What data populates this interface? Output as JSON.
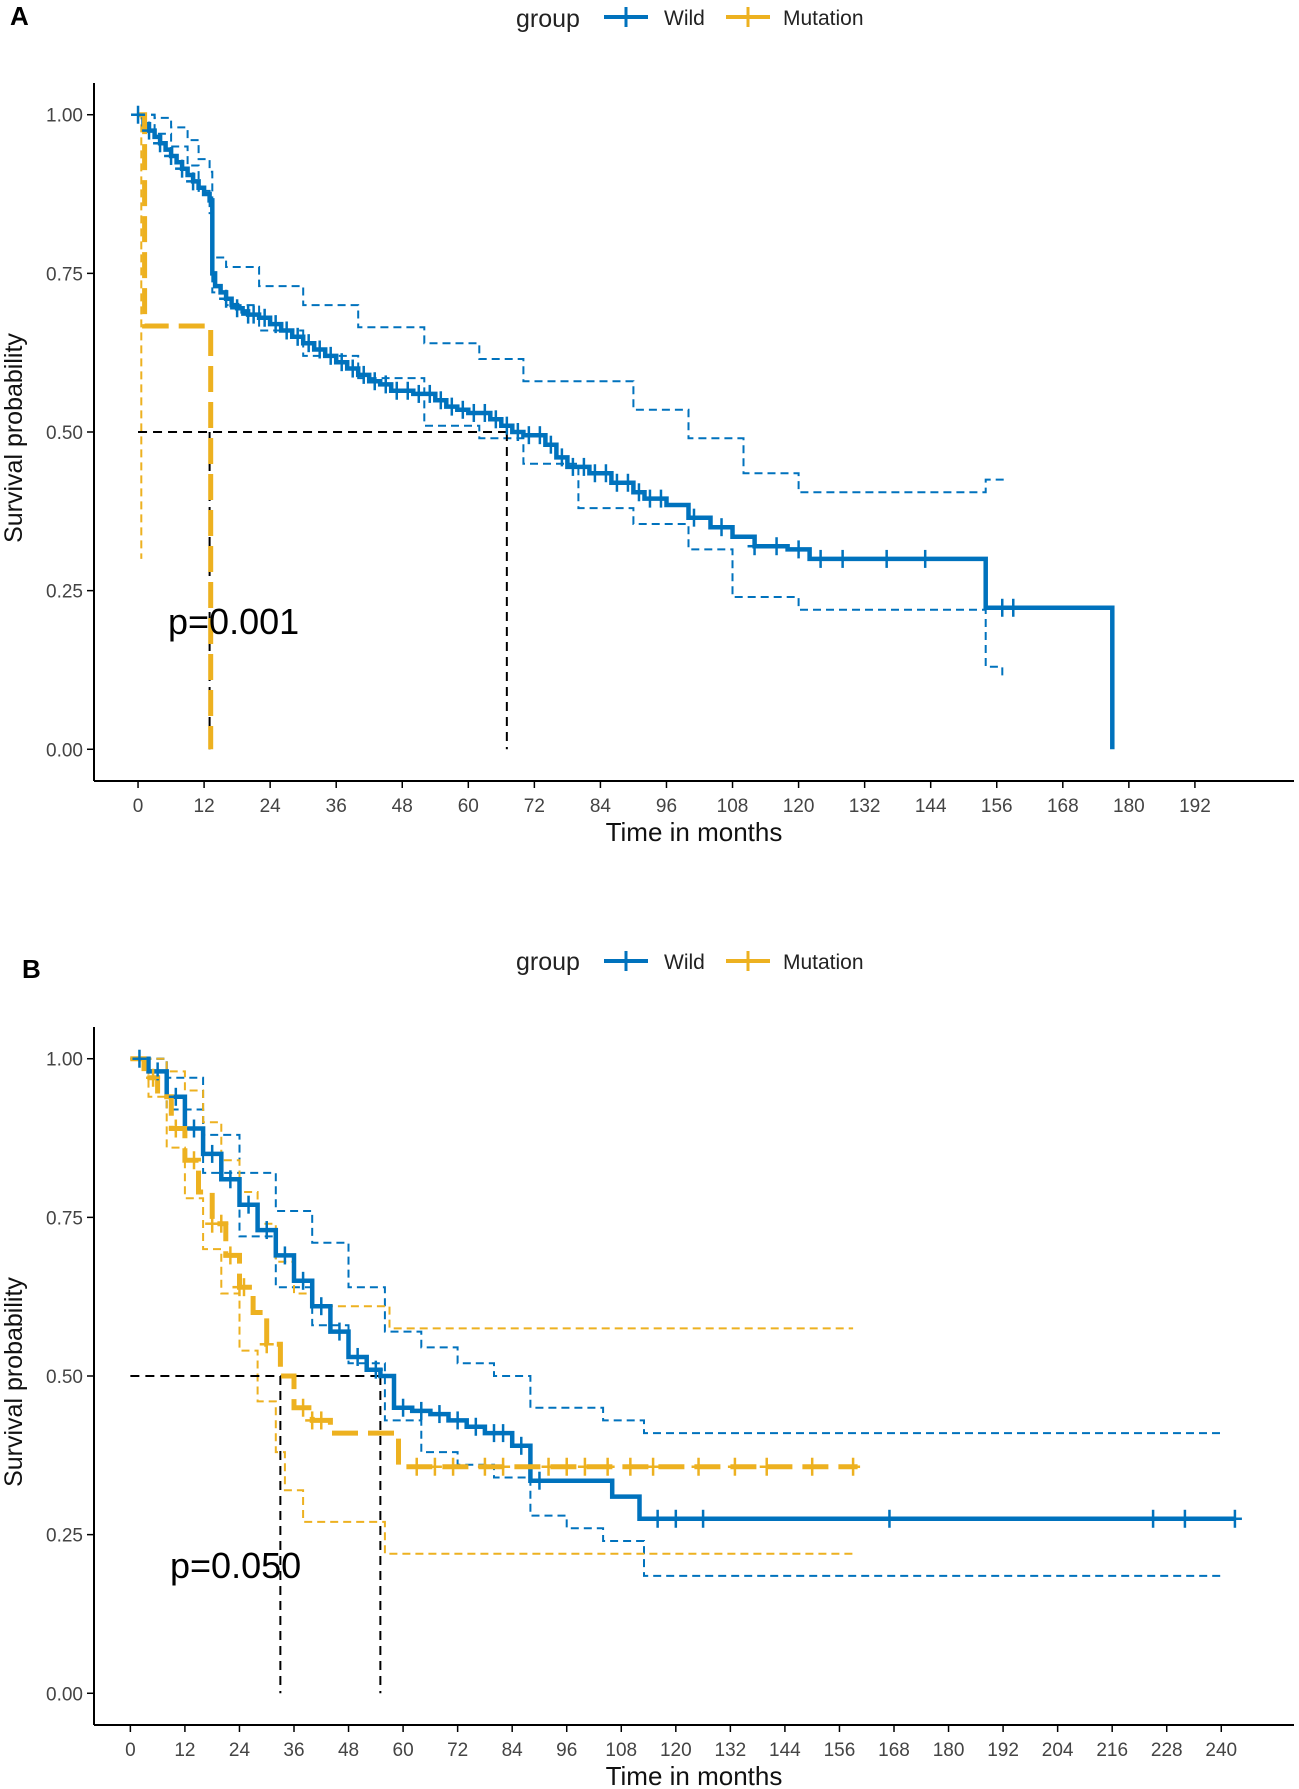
{
  "figure": {
    "legend_title": "group",
    "wild_label": "Wild",
    "mutation_label": "Mutation",
    "ylabel": "Survival probability",
    "xlabel": "Time in months",
    "wild_color": "#0072BD",
    "mutation_color": "#EDB120",
    "median_line_color": "#000000"
  },
  "chart_data": [
    {
      "panel": "A",
      "type": "line",
      "subtype": "kaplan-meier",
      "p_label": "p=0.001",
      "xlabel": "Time in months",
      "ylabel": "Survival probability",
      "xlim": [
        -8,
        210
      ],
      "ylim": [
        -0.05,
        1.05
      ],
      "xticks": [
        0,
        12,
        24,
        36,
        48,
        60,
        72,
        84,
        96,
        108,
        120,
        132,
        144,
        156,
        168,
        180,
        192
      ],
      "yticks": [
        0,
        0.25,
        0.5,
        0.75,
        1
      ],
      "ytick_labels": [
        "0.00",
        "0.25",
        "0.50",
        "0.75",
        "1.00"
      ],
      "legend_position": "top",
      "median_lines": {
        "y": 0.5,
        "x": [
          13,
          67
        ]
      },
      "series": [
        {
          "name": "Wild",
          "color": "#0072BD",
          "x": [
            0,
            1,
            2,
            3,
            4,
            5,
            6,
            7,
            8,
            9,
            10,
            11,
            12,
            13,
            13.5,
            14,
            15,
            16,
            17,
            18,
            19,
            20,
            22,
            24,
            26,
            28,
            30,
            32,
            34,
            36,
            38,
            40,
            42,
            44,
            46,
            50,
            54,
            56,
            58,
            60,
            64,
            66,
            68,
            70,
            74,
            76,
            78,
            82,
            86,
            90,
            92,
            96,
            100,
            104,
            108,
            112,
            118,
            122,
            134,
            146,
            154,
            157,
            170,
            177
          ],
          "y": [
            1,
            0.985,
            0.975,
            0.965,
            0.955,
            0.945,
            0.935,
            0.925,
            0.915,
            0.905,
            0.895,
            0.885,
            0.875,
            0.865,
            0.75,
            0.73,
            0.72,
            0.71,
            0.7,
            0.695,
            0.69,
            0.685,
            0.68,
            0.67,
            0.66,
            0.65,
            0.64,
            0.63,
            0.62,
            0.61,
            0.6,
            0.59,
            0.58,
            0.575,
            0.565,
            0.56,
            0.55,
            0.54,
            0.535,
            0.53,
            0.52,
            0.51,
            0.5,
            0.495,
            0.48,
            0.46,
            0.445,
            0.435,
            0.42,
            0.405,
            0.395,
            0.385,
            0.365,
            0.35,
            0.335,
            0.32,
            0.315,
            0.3,
            0.3,
            0.3,
            0.223,
            0.223,
            0.223,
            0
          ],
          "ci_upper": [
            [
              0,
              1
            ],
            [
              3,
              0.995
            ],
            [
              6,
              0.98
            ],
            [
              9,
              0.96
            ],
            [
              11,
              0.93
            ],
            [
              13,
              0.91
            ],
            [
              13.5,
              0.775
            ],
            [
              16,
              0.76
            ],
            [
              22,
              0.73
            ],
            [
              30,
              0.7
            ],
            [
              40,
              0.665
            ],
            [
              52,
              0.64
            ],
            [
              62,
              0.615
            ],
            [
              70,
              0.58
            ],
            [
              90,
              0.535
            ],
            [
              100,
              0.49
            ],
            [
              110,
              0.435
            ],
            [
              120,
              0.405
            ],
            [
              132,
              0.405
            ],
            [
              150,
              0.405
            ],
            [
              154,
              0.425
            ],
            [
              158,
              0.425
            ]
          ],
          "ci_lower": [
            [
              0,
              1
            ],
            [
              3,
              0.97
            ],
            [
              6,
              0.95
            ],
            [
              9,
              0.92
            ],
            [
              11,
              0.88
            ],
            [
              13,
              0.845
            ],
            [
              13.5,
              0.72
            ],
            [
              16,
              0.7
            ],
            [
              22,
              0.66
            ],
            [
              30,
              0.62
            ],
            [
              40,
              0.585
            ],
            [
              52,
              0.51
            ],
            [
              62,
              0.49
            ],
            [
              70,
              0.45
            ],
            [
              80,
              0.38
            ],
            [
              90,
              0.355
            ],
            [
              100,
              0.315
            ],
            [
              108,
              0.24
            ],
            [
              120,
              0.22
            ],
            [
              132,
              0.22
            ],
            [
              150,
              0.22
            ],
            [
              154,
              0.13
            ],
            [
              157,
              0.115
            ]
          ],
          "censor_x": [
            0,
            2,
            4,
            6,
            8,
            10,
            16,
            18,
            20,
            21,
            23,
            25,
            27,
            29,
            31,
            33,
            35,
            37,
            39,
            41,
            43,
            45,
            47,
            49,
            51,
            53,
            55,
            57,
            59,
            61,
            63,
            65,
            67,
            69,
            71,
            73,
            75,
            77,
            79,
            81,
            83,
            85,
            87,
            89,
            91,
            93,
            95,
            101,
            106,
            112,
            116,
            120,
            124,
            128,
            136,
            143,
            157,
            159
          ]
        },
        {
          "name": "Mutation",
          "color": "#EDB120",
          "x": [
            0,
            1,
            1.2,
            13,
            13.2
          ],
          "y": [
            1,
            1,
            0.667,
            0.667,
            0
          ],
          "ci_upper": [
            [
              0,
              1
            ]
          ],
          "ci_lower": [
            [
              0,
              1
            ],
            [
              0.5,
              1
            ],
            [
              0.6,
              0.3
            ]
          ],
          "censor_x": []
        }
      ]
    },
    {
      "panel": "B",
      "type": "line",
      "subtype": "kaplan-meier",
      "p_label": "p=0.050",
      "xlabel": "Time in months",
      "ylabel": "Survival probability",
      "xlim": [
        -8,
        256
      ],
      "ylim": [
        -0.05,
        1.05
      ],
      "xticks": [
        0,
        12,
        24,
        36,
        48,
        60,
        72,
        84,
        96,
        108,
        120,
        132,
        144,
        156,
        168,
        180,
        192,
        204,
        216,
        228,
        240
      ],
      "yticks": [
        0,
        0.25,
        0.5,
        0.75,
        1
      ],
      "ytick_labels": [
        "0.00",
        "0.25",
        "0.50",
        "0.75",
        "1.00"
      ],
      "legend_position": "top",
      "median_lines": {
        "y": 0.5,
        "x": [
          33,
          55
        ]
      },
      "series": [
        {
          "name": "Wild",
          "color": "#0072BD",
          "x": [
            0,
            4,
            8,
            12,
            16,
            20,
            24,
            28,
            32,
            36,
            40,
            44,
            48,
            52,
            55,
            58,
            62,
            66,
            70,
            74,
            78,
            84,
            88,
            96,
            102,
            106,
            112,
            120,
            160,
            200,
            243
          ],
          "y": [
            1,
            0.98,
            0.94,
            0.89,
            0.85,
            0.81,
            0.77,
            0.73,
            0.69,
            0.65,
            0.61,
            0.57,
            0.53,
            0.51,
            0.5,
            0.45,
            0.445,
            0.44,
            0.43,
            0.42,
            0.41,
            0.39,
            0.335,
            0.335,
            0.335,
            0.31,
            0.275,
            0.275,
            0.275,
            0.275,
            0.275
          ],
          "ci_upper": [
            [
              0,
              1
            ],
            [
              8,
              0.97
            ],
            [
              16,
              0.88
            ],
            [
              24,
              0.82
            ],
            [
              32,
              0.76
            ],
            [
              40,
              0.71
            ],
            [
              48,
              0.64
            ],
            [
              56,
              0.57
            ],
            [
              64,
              0.545
            ],
            [
              72,
              0.52
            ],
            [
              80,
              0.5
            ],
            [
              88,
              0.45
            ],
            [
              104,
              0.43
            ],
            [
              113,
              0.41
            ],
            [
              140,
              0.41
            ],
            [
              240,
              0.41
            ]
          ],
          "ci_lower": [
            [
              0,
              1
            ],
            [
              8,
              0.92
            ],
            [
              16,
              0.82
            ],
            [
              24,
              0.72
            ],
            [
              32,
              0.64
            ],
            [
              40,
              0.58
            ],
            [
              48,
              0.52
            ],
            [
              56,
              0.43
            ],
            [
              64,
              0.38
            ],
            [
              72,
              0.36
            ],
            [
              80,
              0.34
            ],
            [
              88,
              0.28
            ],
            [
              96,
              0.26
            ],
            [
              104,
              0.24
            ],
            [
              113,
              0.185
            ],
            [
              140,
              0.185
            ],
            [
              240,
              0.185
            ]
          ],
          "censor_x": [
            2,
            6,
            10,
            14,
            18,
            22,
            26,
            30,
            34,
            38,
            42,
            46,
            50,
            54,
            60,
            64,
            68,
            72,
            76,
            80,
            82,
            86,
            90,
            116,
            120,
            126,
            167,
            225,
            232,
            243
          ]
        },
        {
          "name": "Mutation",
          "color": "#EDB120",
          "x": [
            0,
            3,
            6,
            9,
            12,
            15,
            18,
            21,
            24,
            27,
            30,
            33,
            36,
            40,
            44,
            48,
            52,
            55,
            59,
            70,
            100,
            130,
            160
          ],
          "y": [
            1,
            0.97,
            0.94,
            0.89,
            0.84,
            0.79,
            0.74,
            0.69,
            0.64,
            0.6,
            0.55,
            0.5,
            0.45,
            0.43,
            0.41,
            0.41,
            0.41,
            0.41,
            0.357,
            0.357,
            0.357,
            0.357,
            0.357
          ],
          "ci_upper": [
            [
              0,
              1
            ],
            [
              4,
              1
            ],
            [
              8,
              0.98
            ],
            [
              12,
              0.95
            ],
            [
              16,
              0.9
            ],
            [
              20,
              0.84
            ],
            [
              24,
              0.79
            ],
            [
              28,
              0.74
            ],
            [
              32,
              0.68
            ],
            [
              36,
              0.63
            ],
            [
              40,
              0.61
            ],
            [
              55,
              0.61
            ],
            [
              57,
              0.575
            ],
            [
              100,
              0.575
            ],
            [
              159,
              0.575
            ]
          ],
          "ci_lower": [
            [
              0,
              1
            ],
            [
              4,
              0.94
            ],
            [
              8,
              0.86
            ],
            [
              12,
              0.78
            ],
            [
              16,
              0.7
            ],
            [
              20,
              0.63
            ],
            [
              24,
              0.54
            ],
            [
              28,
              0.46
            ],
            [
              32,
              0.38
            ],
            [
              34,
              0.32
            ],
            [
              38,
              0.27
            ],
            [
              54,
              0.27
            ],
            [
              56,
              0.22
            ],
            [
              100,
              0.22
            ],
            [
              159,
              0.22
            ]
          ],
          "censor_x": [
            5,
            10,
            14,
            18,
            20,
            22,
            24,
            25,
            30,
            38,
            40,
            42,
            63,
            67,
            71,
            78,
            82,
            92,
            96,
            100,
            105,
            110,
            115,
            125,
            133,
            140,
            150,
            159
          ]
        }
      ]
    }
  ],
  "panels": [
    {
      "letter": "A"
    },
    {
      "letter": "B"
    }
  ]
}
